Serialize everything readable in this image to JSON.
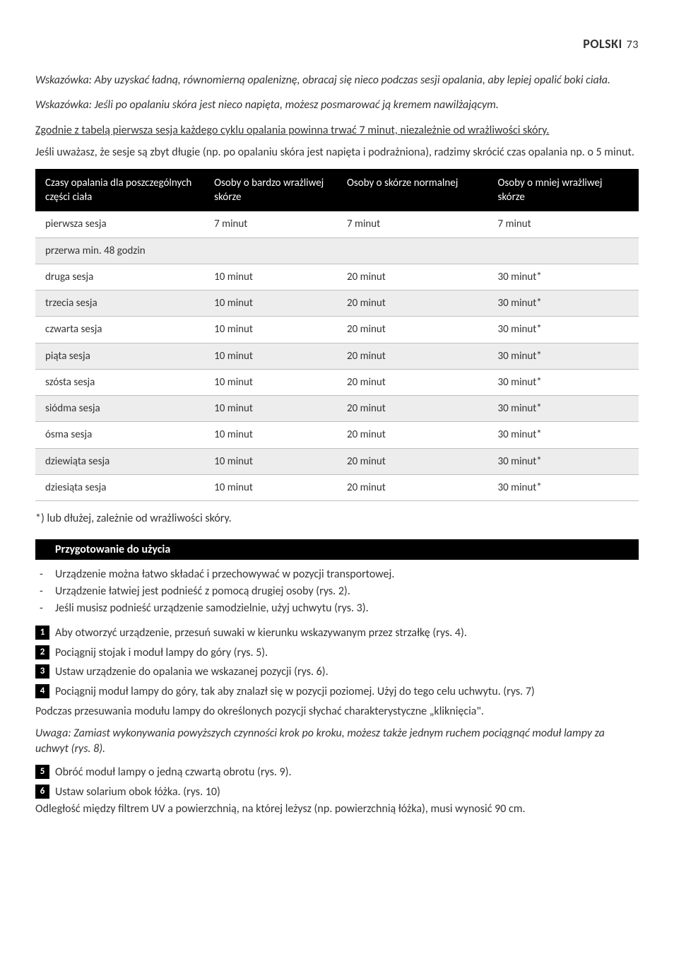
{
  "header": {
    "title": "POLSKI",
    "page": "73"
  },
  "tip1": "Wskazówka: Aby uzyskać ładną, równomierną opaleniznę, obracaj się nieco podczas sesji opalania, aby lepiej opalić boki ciała.",
  "tip2": "Wskazówka: Jeśli po opalaniu skóra jest nieco napięta, możesz posmarować ją kremem nawilżającym.",
  "underline": "Zgodnie z tabelą pierwsza sesja każdego cyklu opalania powinna trwać 7 minut, niezależnie od wrażliwości skóry.",
  "para1": "Jeśli uważasz, że sesje są zbyt długie (np. po opalaniu skóra jest napięta i podrażniona), radzimy skrócić czas opalania np. o 5 minut.",
  "table": {
    "headers": [
      "Czasy opalania dla poszczególnych części ciała",
      "Osoby o bardzo wrażliwej skórze",
      "Osoby o skórze normalnej",
      "Osoby o mniej wrażliwej skórze"
    ],
    "rows": [
      {
        "cells": [
          "pierwsza sesja",
          "7 minut",
          "7 minut",
          "7 minut"
        ],
        "alt": false
      },
      {
        "span": "przerwa min. 48 godzin",
        "alt": true
      },
      {
        "cells": [
          "druga sesja",
          "10 minut",
          "20 minut",
          "30 minut*"
        ],
        "alt": false
      },
      {
        "cells": [
          "trzecia sesja",
          "10 minut",
          "20 minut",
          "30 minut*"
        ],
        "alt": true
      },
      {
        "cells": [
          "czwarta sesja",
          "10 minut",
          "20 minut",
          "30 minut*"
        ],
        "alt": false
      },
      {
        "cells": [
          "piąta sesja",
          "10 minut",
          "20 minut",
          "30 minut*"
        ],
        "alt": true
      },
      {
        "cells": [
          "szósta sesja",
          "10 minut",
          "20 minut",
          "30 minut*"
        ],
        "alt": false
      },
      {
        "cells": [
          "siódma sesja",
          "10 minut",
          "20 minut",
          "30 minut*"
        ],
        "alt": true
      },
      {
        "cells": [
          "ósma sesja",
          "10 minut",
          "20 minut",
          "30 minut*"
        ],
        "alt": false
      },
      {
        "cells": [
          "dziewiąta sesja",
          "10 minut",
          "20 minut",
          "30 minut*"
        ],
        "alt": true
      },
      {
        "cells": [
          "dziesiąta sesja",
          "10 minut",
          "20 minut",
          "30 minut*"
        ],
        "alt": false
      }
    ]
  },
  "footnote": "*) lub dłużej, zależnie od wrażliwości skóry.",
  "section": "Przygotowanie do użycia",
  "bullets": [
    "Urządzenie można łatwo składać i przechowywać w pozycji transportowej.",
    "Urządzenie łatwiej jest podnieść z pomocą drugiej osoby (rys. 2).",
    "Jeśli musisz podnieść urządzenie samodzielnie, użyj uchwytu (rys. 3)."
  ],
  "steps": [
    {
      "n": "1",
      "t": "Aby otworzyć urządzenie, przesuń suwaki w kierunku wskazywanym przez strzałkę (rys. 4)."
    },
    {
      "n": "2",
      "t": "Pociągnij stojak i moduł lampy do góry (rys. 5)."
    },
    {
      "n": "3",
      "t": "Ustaw urządzenie do opalania we wskazanej pozycji (rys. 6)."
    },
    {
      "n": "4",
      "t": "Pociągnij moduł lampy do góry, tak aby znalazł się w pozycji poziomej. Użyj do tego celu uchwytu.  (rys. 7)"
    }
  ],
  "sub1": "Podczas przesuwania modułu lampy do określonych pozycji słychać charakterystyczne „kliknięcia\".",
  "note": "Uwaga: Zamiast wykonywania powyższych czynności krok po kroku, możesz także jednym ruchem pociągnąć moduł lampy za uchwyt (rys. 8).",
  "step5": {
    "n": "5",
    "t": "Obróć moduł lampy o jedną czwartą obrotu (rys. 9)."
  },
  "step6": {
    "n": "6",
    "t": "Ustaw solarium obok łóżka.  (rys. 10)"
  },
  "sub2": "Odległość między filtrem UV a powierzchnią, na której leżysz (np. powierzchnią łóżka), musi wynosić 90 cm."
}
